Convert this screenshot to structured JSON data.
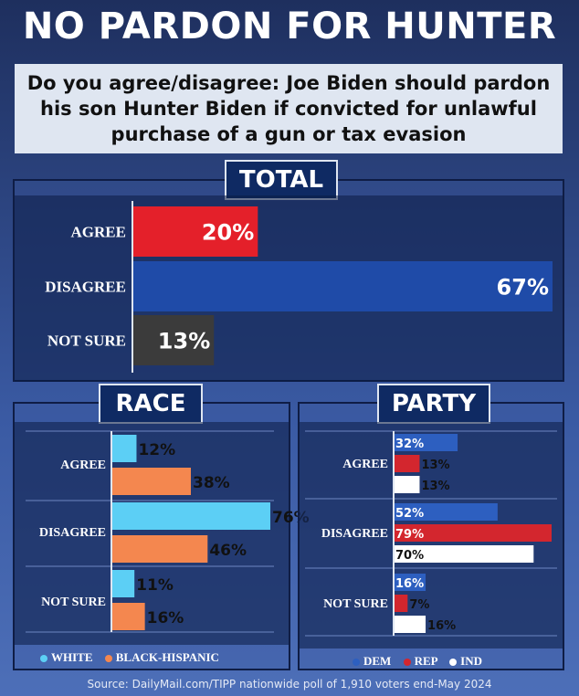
{
  "title": "NO PARDON FOR HUNTER",
  "question": "Do you agree/disagree: Joe Biden should pardon his son Hunter Biden if convicted for unlawful purchase of a gun or tax evasion",
  "source": "Source: DailyMail.com/TIPP nationwide poll of 1,910 voters end-May 2024",
  "colors": {
    "agree": "#e4202a",
    "disagree": "#1f4ba8",
    "not_sure": "#3b3b3b",
    "white": "#5ccff5",
    "black_hispanic": "#f4874f",
    "dem": "#2d5fc0",
    "rep": "#d3262e",
    "ind": "#ffffff"
  },
  "chart_data": [
    {
      "type": "bar",
      "title": "TOTAL",
      "categories": [
        "AGREE",
        "DISAGREE",
        "NOT SURE"
      ],
      "values": [
        20,
        67,
        13
      ],
      "value_labels": [
        "20%",
        "67%",
        "13%"
      ],
      "orientation": "horizontal"
    },
    {
      "type": "bar",
      "title": "RACE",
      "categories": [
        "AGREE",
        "DISAGREE",
        "NOT SURE"
      ],
      "series": [
        {
          "name": "WHITE",
          "values": [
            12,
            76,
            11
          ],
          "labels": [
            "12%",
            "76%",
            "11%"
          ]
        },
        {
          "name": "BLACK-HISPANIC",
          "values": [
            38,
            46,
            16
          ],
          "labels": [
            "38%",
            "46%",
            "16%"
          ]
        }
      ],
      "legend": "bottom"
    },
    {
      "type": "bar",
      "title": "PARTY",
      "categories": [
        "AGREE",
        "DISAGREE",
        "NOT SURE"
      ],
      "series": [
        {
          "name": "DEM",
          "values": [
            32,
            52,
            16
          ],
          "labels": [
            "32%",
            "52%",
            "16%"
          ]
        },
        {
          "name": "REP",
          "values": [
            13,
            79,
            7
          ],
          "labels": [
            "13%",
            "79%",
            "7%"
          ]
        },
        {
          "name": "IND",
          "values": [
            13,
            70,
            16
          ],
          "labels": [
            "13%",
            "70%",
            "16%"
          ]
        }
      ],
      "legend": "bottom"
    }
  ]
}
